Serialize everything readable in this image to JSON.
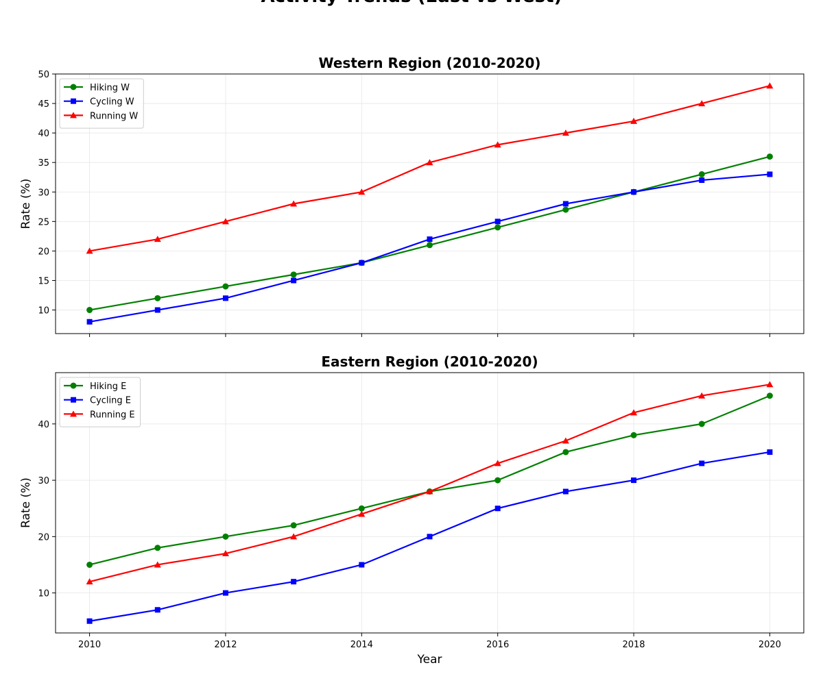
{
  "title": "Activity Trends (East vs West)",
  "chart_data": [
    {
      "type": "line",
      "title": "Western Region (2010-2020)",
      "ylabel": "Rate (%)",
      "x": [
        2010,
        2011,
        2012,
        2013,
        2014,
        2015,
        2016,
        2017,
        2018,
        2019,
        2020
      ],
      "series": [
        {
          "name": "Hiking W",
          "color": "#008000",
          "marker": "circle",
          "values": [
            10,
            12,
            14,
            16,
            18,
            21,
            24,
            27,
            30,
            33,
            36
          ]
        },
        {
          "name": "Cycling W",
          "color": "#0000ff",
          "marker": "square",
          "values": [
            8,
            10,
            12,
            15,
            18,
            22,
            25,
            28,
            30,
            32,
            33
          ]
        },
        {
          "name": "Running W",
          "color": "#ff0000",
          "marker": "triangle",
          "values": [
            20,
            22,
            25,
            28,
            30,
            35,
            38,
            40,
            42,
            45,
            48
          ]
        }
      ],
      "xlim": [
        2009.5,
        2020.5
      ],
      "xticks": [
        2010,
        2012,
        2014,
        2016,
        2018,
        2020
      ],
      "xtick_labels": false,
      "ylim": [
        6,
        50
      ],
      "yticks": [
        10,
        15,
        20,
        25,
        30,
        35,
        40,
        45,
        50
      ],
      "grid": true,
      "legend": "upper-left"
    },
    {
      "type": "line",
      "title": "Eastern Region (2010-2020)",
      "ylabel": "Rate (%)",
      "xlabel": "Year",
      "x": [
        2010,
        2011,
        2012,
        2013,
        2014,
        2015,
        2016,
        2017,
        2018,
        2019,
        2020
      ],
      "series": [
        {
          "name": "Hiking E",
          "color": "#008000",
          "marker": "circle",
          "values": [
            15,
            18,
            20,
            22,
            25,
            28,
            30,
            35,
            38,
            40,
            45
          ]
        },
        {
          "name": "Cycling E",
          "color": "#0000ff",
          "marker": "square",
          "values": [
            5,
            7,
            10,
            12,
            15,
            20,
            25,
            28,
            30,
            33,
            35
          ]
        },
        {
          "name": "Running E",
          "color": "#ff0000",
          "marker": "triangle",
          "values": [
            12,
            15,
            17,
            20,
            24,
            28,
            33,
            37,
            42,
            45,
            47
          ]
        }
      ],
      "xlim": [
        2009.5,
        2020.5
      ],
      "xticks": [
        2010,
        2012,
        2014,
        2016,
        2018,
        2020
      ],
      "xtick_labels": true,
      "ylim": [
        2.9,
        49.1
      ],
      "yticks": [
        10,
        20,
        30,
        40
      ],
      "grid": true,
      "legend": "upper-left"
    }
  ]
}
